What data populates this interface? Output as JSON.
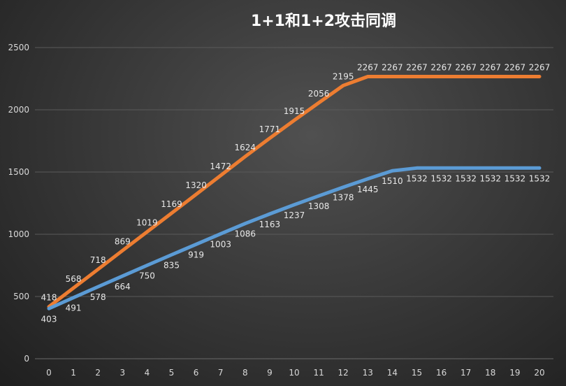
{
  "chart_data": {
    "type": "line",
    "title": "1+1和1+2攻击同调",
    "xlabel": "",
    "ylabel": "",
    "x": [
      0,
      1,
      2,
      3,
      4,
      5,
      6,
      7,
      8,
      9,
      10,
      11,
      12,
      13,
      14,
      15,
      16,
      17,
      18,
      19,
      20
    ],
    "xlim": [
      0,
      20
    ],
    "ylim": [
      0,
      2500
    ],
    "yticks": [
      0,
      500,
      1000,
      1500,
      2000,
      2500
    ],
    "grid": true,
    "legend": "none",
    "series": [
      {
        "name": "orange",
        "color": "#ED7D31",
        "values": [
          418,
          568,
          718,
          869,
          1019,
          1169,
          1320,
          1472,
          1624,
          1771,
          1915,
          2056,
          2195,
          2267,
          2267,
          2267,
          2267,
          2267,
          2267,
          2267,
          2267
        ]
      },
      {
        "name": "blue",
        "color": "#5B9BD5",
        "values": [
          403,
          491,
          578,
          664,
          750,
          835,
          919,
          1003,
          1086,
          1163,
          1237,
          1308,
          1378,
          1445,
          1510,
          1532,
          1532,
          1532,
          1532,
          1532,
          1532
        ]
      }
    ]
  }
}
